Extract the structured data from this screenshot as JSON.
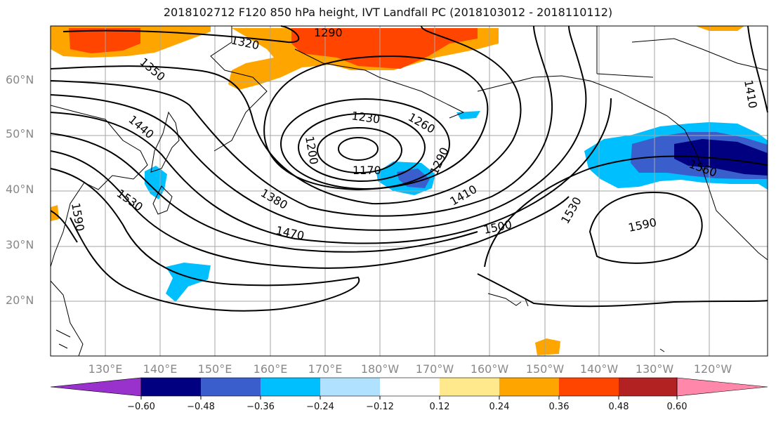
{
  "title": "2018102712 F120 850 hPa height, IVT Landfall PC (2018103012 - 2018110112)",
  "lat_labels": [
    "60°N",
    "50°N",
    "40°N",
    "30°N",
    "20°N"
  ],
  "lon_labels": [
    "130°E",
    "140°E",
    "150°E",
    "160°E",
    "170°E",
    "180°W",
    "170°W",
    "160°W",
    "150°W",
    "140°W",
    "130°W",
    "120°W"
  ],
  "contour_labels": [
    "1290",
    "1320",
    "1350",
    "1440",
    "1230",
    "1260",
    "1200",
    "1170",
    "1290",
    "1410",
    "1380",
    "1530",
    "1470",
    "1500",
    "1530",
    "1590",
    "1560",
    "1410",
    "1590"
  ],
  "colorbar": {
    "ticks": [
      "−0.60",
      "−0.48",
      "−0.36",
      "−0.24",
      "−0.12",
      "0.12",
      "0.24",
      "0.36",
      "0.48",
      "0.60"
    ],
    "colors": [
      "#9932cc",
      "#000080",
      "#3a5fcd",
      "#00bfff",
      "#b0e2ff",
      "#ffffff",
      "#ffe98c",
      "#ffa500",
      "#ff4500",
      "#b22222",
      "#ff88aa"
    ]
  },
  "colors": {
    "text_axis": "#888888",
    "contour": "#000000",
    "grid": "#999999"
  }
}
